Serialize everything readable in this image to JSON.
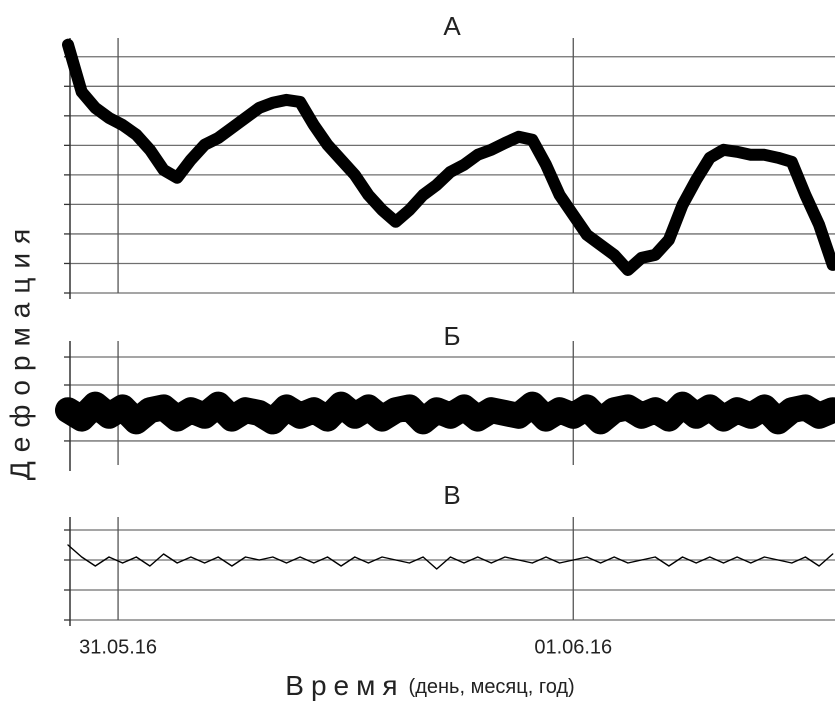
{
  "chart_data": [
    {
      "type": "line",
      "title": "А",
      "color": "#000000",
      "x": [
        -0.11,
        -0.08,
        -0.05,
        -0.02,
        0.01,
        0.04,
        0.07,
        0.1,
        0.13,
        0.16,
        0.19,
        0.22,
        0.25,
        0.28,
        0.31,
        0.34,
        0.37,
        0.4,
        0.43,
        0.46,
        0.49,
        0.52,
        0.55,
        0.58,
        0.61,
        0.64,
        0.67,
        0.7,
        0.73,
        0.76,
        0.79,
        0.82,
        0.85,
        0.88,
        0.91,
        0.94,
        0.97,
        1.0,
        1.03,
        1.06,
        1.09,
        1.12,
        1.15,
        1.18,
        1.21,
        1.24,
        1.27,
        1.3,
        1.33,
        1.36,
        1.39,
        1.42,
        1.45,
        1.48,
        1.51,
        1.54,
        1.57
      ],
      "values": [
        8.41,
        6.81,
        6.27,
        5.93,
        5.69,
        5.36,
        4.85,
        4.17,
        3.9,
        4.51,
        5.02,
        5.25,
        5.59,
        5.93,
        6.27,
        6.44,
        6.54,
        6.47,
        5.69,
        5.02,
        4.51,
        4.0,
        3.32,
        2.81,
        2.41,
        2.81,
        3.32,
        3.66,
        4.1,
        4.34,
        4.68,
        4.85,
        5.08,
        5.29,
        5.19,
        4.34,
        3.32,
        2.64,
        1.97,
        1.63,
        1.29,
        0.78,
        1.19,
        1.29,
        1.8,
        2.98,
        3.83,
        4.58,
        4.85,
        4.78,
        4.68,
        4.68,
        4.58,
        4.44,
        3.32,
        2.31,
        0.95
      ],
      "xlim": [
        -0.11,
        1.575
      ],
      "xticks": [
        0,
        1
      ],
      "ylim": [
        0,
        8.5
      ],
      "yticks": [
        0,
        1,
        2,
        3,
        4,
        5,
        6,
        7,
        8
      ],
      "grid": true
    },
    {
      "type": "line",
      "title": "Б",
      "color": "#000000",
      "x": [
        -0.11,
        -0.08,
        -0.05,
        -0.02,
        0.01,
        0.04,
        0.07,
        0.1,
        0.13,
        0.16,
        0.19,
        0.22,
        0.25,
        0.28,
        0.31,
        0.34,
        0.37,
        0.4,
        0.43,
        0.46,
        0.49,
        0.52,
        0.55,
        0.58,
        0.61,
        0.64,
        0.67,
        0.7,
        0.73,
        0.76,
        0.79,
        0.82,
        0.85,
        0.88,
        0.91,
        0.94,
        0.97,
        1.0,
        1.03,
        1.06,
        1.09,
        1.12,
        1.15,
        1.18,
        1.21,
        1.24,
        1.27,
        1.3,
        1.33,
        1.36,
        1.39,
        1.42,
        1.45,
        1.48,
        1.51,
        1.54,
        1.57
      ],
      "values": [
        0.1,
        -0.2,
        0.3,
        -0.1,
        0.2,
        -0.3,
        0.1,
        0.2,
        -0.2,
        0.1,
        -0.1,
        0.3,
        -0.2,
        0.1,
        0,
        -0.3,
        0.2,
        -0.1,
        0.1,
        -0.2,
        0.3,
        -0.1,
        0.2,
        -0.2,
        0.1,
        0.2,
        -0.3,
        0.1,
        -0.1,
        0.2,
        -0.2,
        0.1,
        0,
        -0.1,
        0.3,
        -0.2,
        0.1,
        -0.1,
        0.2,
        -0.3,
        0.1,
        0.2,
        -0.1,
        0.1,
        -0.2,
        0.3,
        -0.1,
        0.2,
        -0.2,
        0.1,
        -0.1,
        0.2,
        -0.3,
        0.1,
        0.2,
        -0.1,
        0.1
      ],
      "xlim": [
        -0.11,
        1.575
      ],
      "xticks": [
        0,
        1
      ],
      "ylim": [
        -1.86,
        2.43
      ],
      "yticks": [
        -1,
        0,
        1,
        2
      ],
      "grid": true
    },
    {
      "type": "line",
      "title": "В",
      "color": "#000000",
      "x": [
        -0.11,
        -0.08,
        -0.05,
        -0.02,
        0.01,
        0.04,
        0.07,
        0.1,
        0.13,
        0.16,
        0.19,
        0.22,
        0.25,
        0.28,
        0.31,
        0.34,
        0.37,
        0.4,
        0.43,
        0.46,
        0.49,
        0.52,
        0.55,
        0.58,
        0.61,
        0.64,
        0.67,
        0.7,
        0.73,
        0.76,
        0.79,
        0.82,
        0.85,
        0.88,
        0.91,
        0.94,
        0.97,
        1.0,
        1.03,
        1.06,
        1.09,
        1.12,
        1.15,
        1.18,
        1.21,
        1.24,
        1.27,
        1.3,
        1.33,
        1.36,
        1.39,
        1.42,
        1.45,
        1.48,
        1.51,
        1.54,
        1.57
      ],
      "values": [
        0.5,
        0.1,
        -0.2,
        0.1,
        -0.1,
        0.1,
        -0.2,
        0.2,
        -0.1,
        0.1,
        -0.1,
        0.1,
        -0.2,
        0.1,
        0,
        0.1,
        -0.1,
        0.1,
        -0.1,
        0.1,
        -0.2,
        0.1,
        -0.1,
        0.1,
        0,
        -0.1,
        0.1,
        -0.3,
        0.1,
        -0.1,
        0.1,
        -0.1,
        0.1,
        0,
        -0.1,
        0.1,
        -0.1,
        0,
        0.1,
        -0.1,
        0.1,
        -0.1,
        0,
        0.1,
        -0.2,
        0.1,
        -0.1,
        0.1,
        -0.1,
        0.1,
        -0.1,
        0.1,
        0,
        -0.1,
        0.1,
        -0.2,
        0.2
      ],
      "xlim": [
        -0.11,
        1.575
      ],
      "xticks": [
        {
          "value": 0,
          "label": "31.05.16"
        },
        {
          "value": 1,
          "label": "01.06.16"
        }
      ],
      "ylim": [
        -2,
        1.3
      ],
      "yticks": [
        -2,
        -1,
        0,
        1
      ],
      "grid": true
    }
  ],
  "y_label": "Деформация",
  "x_label": "Время",
  "x_unit": "(день, месяц, год)"
}
